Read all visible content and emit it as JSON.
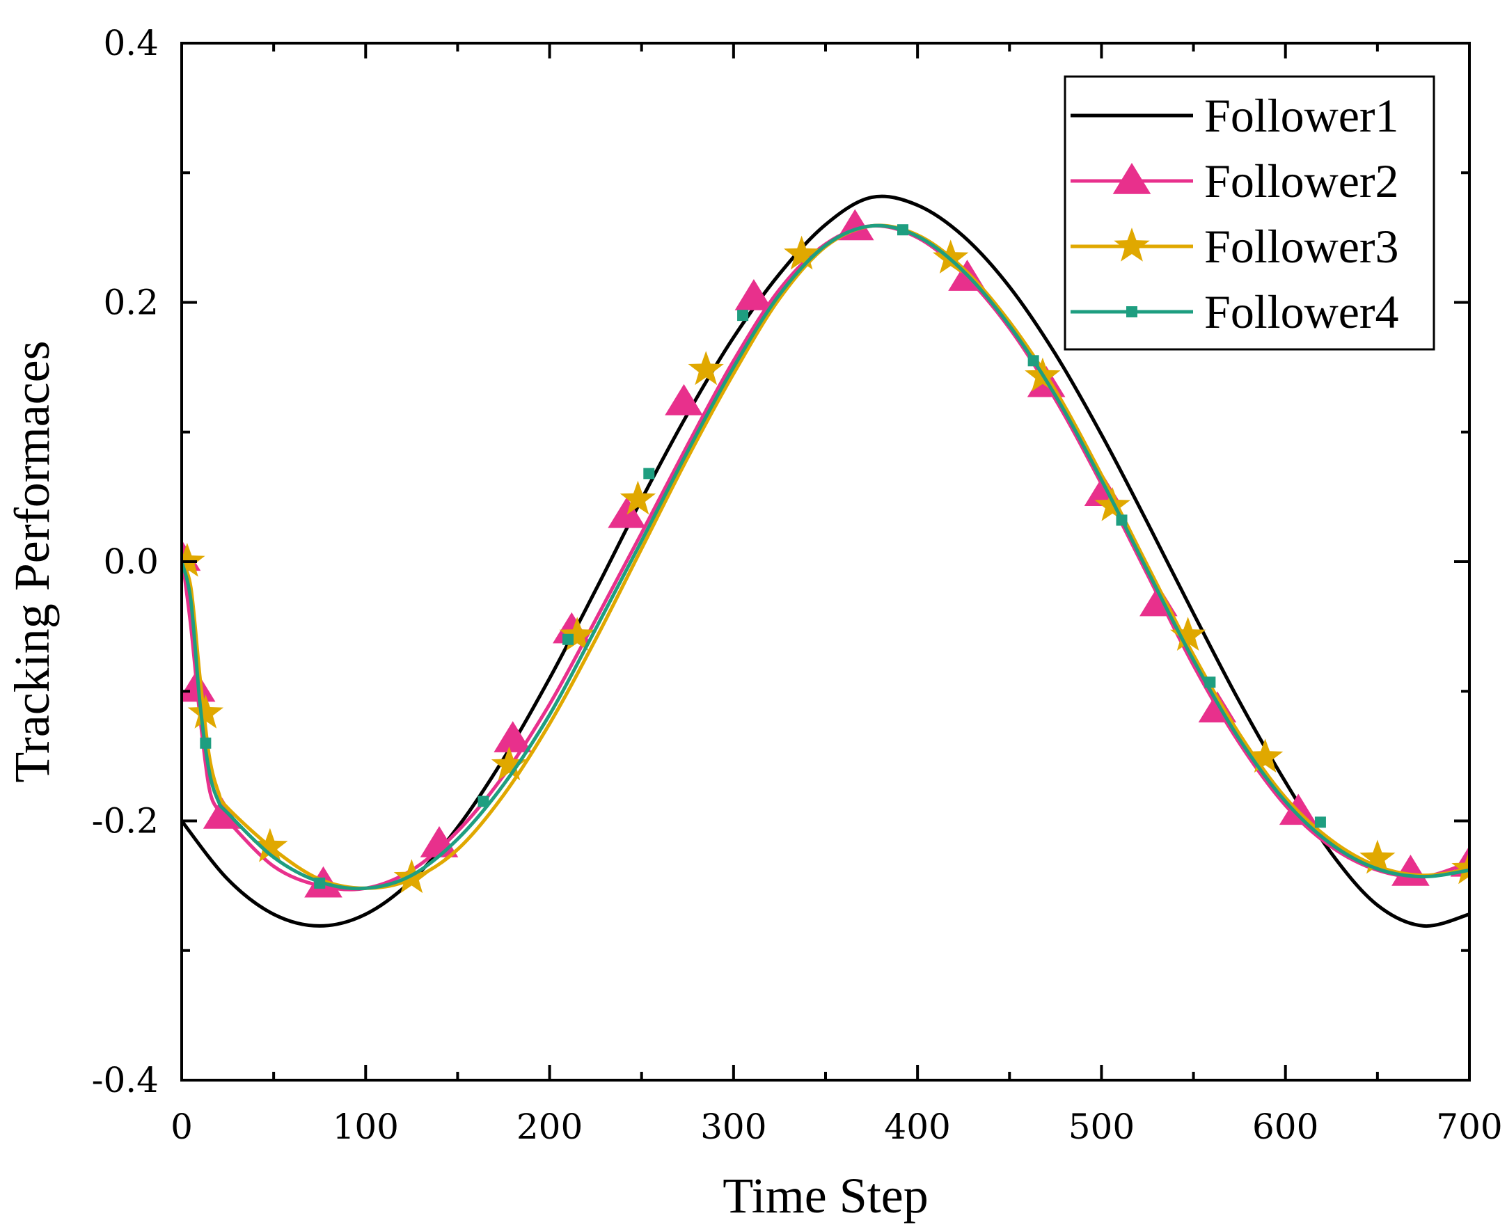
{
  "chart_data": {
    "type": "line",
    "title": "",
    "xlabel": "Time Step",
    "ylabel": "Tracking Performaces",
    "xlim": [
      0,
      700
    ],
    "ylim": [
      -0.4,
      0.4
    ],
    "xticks": [
      0,
      100,
      200,
      300,
      400,
      500,
      600,
      700
    ],
    "xtick_labels": [
      "0",
      "100",
      "200",
      "300",
      "400",
      "500",
      "600",
      "700"
    ],
    "yticks": [
      -0.4,
      -0.2,
      0.0,
      0.2,
      0.4
    ],
    "ytick_labels": [
      "-0.4",
      "-0.2",
      "0.0",
      "0.2",
      "0.4"
    ],
    "grid": false,
    "legend_position": "top-right",
    "series": [
      {
        "name": "Follower1",
        "color": "#000000",
        "marker": "none",
        "x": [
          0,
          25,
          50,
          75,
          100,
          125,
          150,
          175,
          200,
          225,
          250,
          275,
          300,
          325,
          350,
          375,
          400,
          425,
          450,
          475,
          500,
          525,
          550,
          575,
          600,
          625,
          650,
          675,
          700
        ],
        "y": [
          -0.2,
          -0.245,
          -0.272,
          -0.281,
          -0.272,
          -0.246,
          -0.205,
          -0.152,
          -0.09,
          -0.022,
          0.048,
          0.114,
          0.173,
          0.222,
          0.26,
          0.281,
          0.275,
          0.251,
          0.212,
          0.16,
          0.098,
          0.03,
          -0.04,
          -0.108,
          -0.17,
          -0.225,
          -0.265,
          -0.281,
          -0.272
        ]
      },
      {
        "name": "Follower2",
        "color": "#e8308c",
        "marker": "triangle",
        "x": [
          0,
          5,
          10,
          15,
          20,
          25,
          50,
          75,
          100,
          125,
          150,
          175,
          200,
          225,
          250,
          275,
          300,
          325,
          350,
          375,
          400,
          425,
          450,
          475,
          500,
          525,
          550,
          575,
          600,
          625,
          650,
          675,
          700
        ],
        "y": [
          0.005,
          -0.05,
          -0.12,
          -0.175,
          -0.192,
          -0.2,
          -0.235,
          -0.25,
          -0.252,
          -0.238,
          -0.208,
          -0.165,
          -0.11,
          -0.045,
          0.022,
          0.09,
          0.155,
          0.21,
          0.245,
          0.259,
          0.25,
          0.222,
          0.18,
          0.125,
          0.06,
          -0.01,
          -0.08,
          -0.14,
          -0.188,
          -0.22,
          -0.238,
          -0.243,
          -0.232
        ],
        "marker_x": [
          0,
          8,
          22,
          77,
          140,
          180,
          212,
          242,
          273,
          311,
          366,
          427,
          470,
          501,
          531,
          563,
          607,
          668,
          700
        ],
        "marker_y": [
          0.003,
          -0.098,
          -0.196,
          -0.249,
          -0.218,
          -0.137,
          -0.053,
          0.036,
          0.123,
          0.204,
          0.258,
          0.219,
          0.137,
          0.053,
          -0.032,
          -0.114,
          -0.193,
          -0.24,
          -0.233
        ]
      },
      {
        "name": "Follower3",
        "color": "#e0a800",
        "marker": "star",
        "x": [
          0,
          5,
          10,
          15,
          20,
          25,
          50,
          75,
          100,
          125,
          150,
          175,
          200,
          225,
          250,
          275,
          300,
          325,
          350,
          375,
          400,
          425,
          450,
          475,
          500,
          525,
          550,
          575,
          600,
          625,
          650,
          675,
          700
        ],
        "y": [
          0.0,
          -0.02,
          -0.09,
          -0.15,
          -0.178,
          -0.19,
          -0.222,
          -0.245,
          -0.252,
          -0.245,
          -0.222,
          -0.18,
          -0.125,
          -0.06,
          0.01,
          0.08,
          0.145,
          0.203,
          0.243,
          0.259,
          0.252,
          0.226,
          0.185,
          0.132,
          0.067,
          -0.003,
          -0.072,
          -0.133,
          -0.182,
          -0.215,
          -0.235,
          -0.242,
          -0.237
        ],
        "marker_x": [
          3,
          13,
          48,
          125,
          178,
          215,
          248,
          285,
          337,
          418,
          468,
          506,
          547,
          589,
          650,
          700
        ],
        "marker_y": [
          0.0,
          -0.117,
          -0.22,
          -0.244,
          -0.157,
          -0.057,
          0.048,
          0.148,
          0.237,
          0.234,
          0.143,
          0.043,
          -0.057,
          -0.151,
          -0.229,
          -0.237
        ]
      },
      {
        "name": "Follower4",
        "color": "#1e9e80",
        "marker": "square",
        "x": [
          0,
          5,
          10,
          15,
          20,
          25,
          50,
          75,
          100,
          125,
          150,
          175,
          200,
          225,
          250,
          275,
          300,
          325,
          350,
          375,
          400,
          425,
          450,
          475,
          500,
          525,
          550,
          575,
          600,
          625,
          650,
          675,
          700
        ],
        "y": [
          0.0,
          -0.03,
          -0.11,
          -0.162,
          -0.185,
          -0.194,
          -0.228,
          -0.247,
          -0.252,
          -0.242,
          -0.214,
          -0.172,
          -0.118,
          -0.052,
          0.016,
          0.085,
          0.15,
          0.206,
          0.244,
          0.259,
          0.251,
          0.224,
          0.182,
          0.128,
          0.063,
          -0.007,
          -0.076,
          -0.137,
          -0.185,
          -0.218,
          -0.237,
          -0.243,
          -0.238
        ],
        "marker_x": [
          13,
          75,
          164,
          210,
          254,
          305,
          392,
          463,
          511,
          559,
          619
        ],
        "marker_y": [
          -0.14,
          -0.248,
          -0.185,
          -0.06,
          0.068,
          0.19,
          0.256,
          0.155,
          0.032,
          -0.093,
          -0.201
        ]
      }
    ]
  }
}
